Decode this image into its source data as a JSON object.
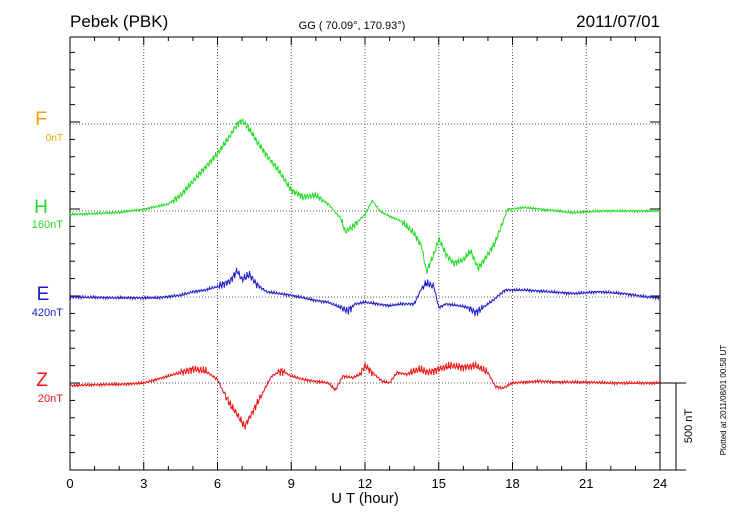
{
  "chart_data": {
    "type": "line",
    "title_left": "Pebek (PBK)",
    "title_center": "GG ( 70.09°, 170.93°)",
    "title_right": "2011/07/01",
    "xlabel": "U T (hour)",
    "xlim": [
      0,
      24
    ],
    "x_ticks": [
      "0",
      "3",
      "6",
      "9",
      "12",
      "15",
      "18",
      "21",
      "24"
    ],
    "grid": true,
    "scale_label": "500 nT",
    "plotted_note": "Plotted at 2011/08/01 00:58 UT",
    "series": [
      {
        "name": "F",
        "offset": "0nT",
        "color": "#f5a000",
        "values": []
      },
      {
        "name": "H",
        "offset": "160nT",
        "color": "#22dd22",
        "points": [
          [
            0,
            -20
          ],
          [
            1,
            -15
          ],
          [
            2,
            -8
          ],
          [
            3,
            10
          ],
          [
            4,
            40
          ],
          [
            4.5,
            90
          ],
          [
            5,
            170
          ],
          [
            5.5,
            250
          ],
          [
            6,
            330
          ],
          [
            6.5,
            430
          ],
          [
            6.8,
            500
          ],
          [
            7,
            520
          ],
          [
            7.3,
            470
          ],
          [
            7.6,
            400
          ],
          [
            8,
            320
          ],
          [
            8.5,
            230
          ],
          [
            9,
            120
          ],
          [
            9.5,
            80
          ],
          [
            10,
            90
          ],
          [
            10.5,
            40
          ],
          [
            11,
            -40
          ],
          [
            11.2,
            -120
          ],
          [
            11.5,
            -90
          ],
          [
            12,
            -20
          ],
          [
            12.3,
            60
          ],
          [
            12.6,
            0
          ],
          [
            13,
            -30
          ],
          [
            13.5,
            -60
          ],
          [
            14,
            -130
          ],
          [
            14.3,
            -200
          ],
          [
            14.5,
            -350
          ],
          [
            14.8,
            -250
          ],
          [
            15,
            -160
          ],
          [
            15.3,
            -250
          ],
          [
            15.6,
            -300
          ],
          [
            16,
            -280
          ],
          [
            16.3,
            -230
          ],
          [
            16.6,
            -330
          ],
          [
            17,
            -250
          ],
          [
            17.3,
            -180
          ],
          [
            17.8,
            10
          ],
          [
            18.5,
            20
          ],
          [
            19.5,
            5
          ],
          [
            20.5,
            -10
          ],
          [
            21.5,
            0
          ],
          [
            23,
            0
          ],
          [
            24,
            0
          ]
        ]
      },
      {
        "name": "E",
        "offset": "420nT",
        "color": "#1a1acc",
        "points": [
          [
            0,
            0
          ],
          [
            2,
            -5
          ],
          [
            3.5,
            -5
          ],
          [
            4.5,
            10
          ],
          [
            5,
            30
          ],
          [
            5.5,
            40
          ],
          [
            6,
            60
          ],
          [
            6.5,
            90
          ],
          [
            6.8,
            150
          ],
          [
            7,
            100
          ],
          [
            7.3,
            130
          ],
          [
            7.6,
            70
          ],
          [
            8,
            30
          ],
          [
            9,
            10
          ],
          [
            10,
            -20
          ],
          [
            10.5,
            -30
          ],
          [
            11,
            -60
          ],
          [
            11.3,
            -80
          ],
          [
            11.6,
            -40
          ],
          [
            12,
            -30
          ],
          [
            12.5,
            -40
          ],
          [
            13,
            -50
          ],
          [
            13.5,
            -40
          ],
          [
            14,
            -40
          ],
          [
            14.3,
            50
          ],
          [
            14.5,
            80
          ],
          [
            14.8,
            60
          ],
          [
            15,
            -60
          ],
          [
            15.3,
            -40
          ],
          [
            15.8,
            -50
          ],
          [
            16.2,
            -60
          ],
          [
            16.5,
            -90
          ],
          [
            16.8,
            -60
          ],
          [
            17.2,
            -20
          ],
          [
            17.7,
            40
          ],
          [
            18.5,
            40
          ],
          [
            19.5,
            30
          ],
          [
            20.5,
            20
          ],
          [
            21.5,
            30
          ],
          [
            22.5,
            20
          ],
          [
            23.5,
            0
          ],
          [
            24,
            -5
          ]
        ]
      },
      {
        "name": "Z",
        "offset": "20nT",
        "color": "#ee1111",
        "points": [
          [
            0,
            -15
          ],
          [
            1,
            -10
          ],
          [
            2,
            -8
          ],
          [
            3,
            0
          ],
          [
            3.5,
            20
          ],
          [
            4,
            40
          ],
          [
            4.5,
            60
          ],
          [
            5,
            80
          ],
          [
            5.5,
            70
          ],
          [
            6,
            20
          ],
          [
            6.2,
            -40
          ],
          [
            6.5,
            -120
          ],
          [
            6.8,
            -180
          ],
          [
            7.1,
            -250
          ],
          [
            7.3,
            -200
          ],
          [
            7.6,
            -120
          ],
          [
            7.9,
            -40
          ],
          [
            8.2,
            40
          ],
          [
            8.6,
            70
          ],
          [
            9,
            40
          ],
          [
            9.5,
            20
          ],
          [
            10,
            10
          ],
          [
            10.5,
            0
          ],
          [
            10.8,
            -40
          ],
          [
            11.1,
            40
          ],
          [
            11.5,
            30
          ],
          [
            11.8,
            50
          ],
          [
            12,
            100
          ],
          [
            12.3,
            60
          ],
          [
            12.7,
            10
          ],
          [
            13,
            0
          ],
          [
            13.3,
            60
          ],
          [
            13.7,
            50
          ],
          [
            14.2,
            80
          ],
          [
            14.6,
            60
          ],
          [
            15,
            80
          ],
          [
            15.5,
            100
          ],
          [
            16,
            90
          ],
          [
            16.5,
            100
          ],
          [
            17,
            60
          ],
          [
            17.3,
            -20
          ],
          [
            17.6,
            -30
          ],
          [
            18,
            0
          ],
          [
            19,
            10
          ],
          [
            20,
            5
          ],
          [
            21,
            5
          ],
          [
            22,
            0
          ],
          [
            23,
            0
          ],
          [
            24,
            0
          ]
        ]
      }
    ]
  }
}
